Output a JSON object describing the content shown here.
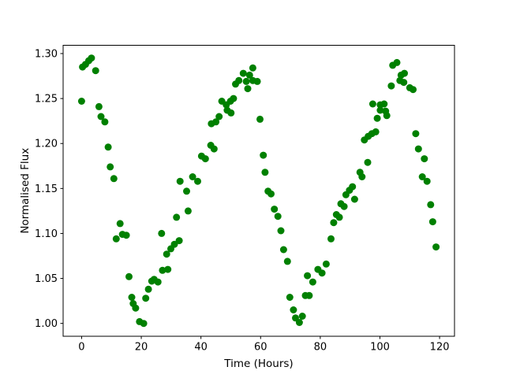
{
  "figure": {
    "background_color": "#ffffff"
  },
  "chart_data": {
    "type": "scatter",
    "title": "",
    "xlabel": "Time (Hours)",
    "ylabel": "Normalised Flux",
    "legend_position": "none",
    "grid": false,
    "marker": {
      "shape": "circle",
      "color": "#008000",
      "radius_px": 4.5
    },
    "axes": {
      "xlim": [
        -6.2,
        125.0
      ],
      "ylim": [
        0.9857,
        1.3092
      ],
      "xticks": [
        {
          "v": 0,
          "label": "0"
        },
        {
          "v": 20,
          "label": "20"
        },
        {
          "v": 40,
          "label": "40"
        },
        {
          "v": 60,
          "label": "60"
        },
        {
          "v": 80,
          "label": "80"
        },
        {
          "v": 100,
          "label": "100"
        },
        {
          "v": 120,
          "label": "120"
        }
      ],
      "yticks": [
        {
          "v": 1.0,
          "label": "1.00"
        },
        {
          "v": 1.05,
          "label": "1.05"
        },
        {
          "v": 1.1,
          "label": "1.10"
        },
        {
          "v": 1.15,
          "label": "1.15"
        },
        {
          "v": 1.2,
          "label": "1.20"
        },
        {
          "v": 1.25,
          "label": "1.25"
        },
        {
          "v": 1.3,
          "label": "1.30"
        }
      ]
    },
    "points": [
      [
        0.0,
        1.247
      ],
      [
        0.3,
        1.285
      ],
      [
        1.3,
        1.288
      ],
      [
        2.4,
        1.292
      ],
      [
        3.3,
        1.295
      ],
      [
        4.7,
        1.281
      ],
      [
        5.8,
        1.241
      ],
      [
        6.5,
        1.23
      ],
      [
        7.8,
        1.224
      ],
      [
        8.9,
        1.196
      ],
      [
        9.6,
        1.174
      ],
      [
        10.8,
        1.161
      ],
      [
        11.6,
        1.094
      ],
      [
        12.9,
        1.111
      ],
      [
        13.7,
        1.099
      ],
      [
        15.0,
        1.098
      ],
      [
        15.9,
        1.052
      ],
      [
        16.8,
        1.029
      ],
      [
        17.3,
        1.022
      ],
      [
        18.1,
        1.017
      ],
      [
        19.4,
        1.002
      ],
      [
        20.8,
        1.0
      ],
      [
        21.5,
        1.028
      ],
      [
        22.4,
        1.038
      ],
      [
        23.5,
        1.047
      ],
      [
        24.3,
        1.049
      ],
      [
        25.6,
        1.046
      ],
      [
        26.8,
        1.1
      ],
      [
        27.1,
        1.059
      ],
      [
        28.5,
        1.077
      ],
      [
        28.9,
        1.06
      ],
      [
        29.9,
        1.083
      ],
      [
        31.1,
        1.088
      ],
      [
        31.8,
        1.118
      ],
      [
        32.7,
        1.092
      ],
      [
        33.0,
        1.158
      ],
      [
        35.2,
        1.147
      ],
      [
        35.7,
        1.125
      ],
      [
        37.2,
        1.163
      ],
      [
        38.9,
        1.158
      ],
      [
        40.2,
        1.186
      ],
      [
        41.5,
        1.183
      ],
      [
        43.3,
        1.198
      ],
      [
        43.5,
        1.222
      ],
      [
        44.4,
        1.194
      ],
      [
        45.0,
        1.224
      ],
      [
        46.1,
        1.23
      ],
      [
        47.0,
        1.247
      ],
      [
        48.5,
        1.243
      ],
      [
        48.8,
        1.237
      ],
      [
        49.9,
        1.247
      ],
      [
        50.1,
        1.234
      ],
      [
        50.9,
        1.25
      ],
      [
        51.6,
        1.266
      ],
      [
        52.7,
        1.27
      ],
      [
        54.2,
        1.278
      ],
      [
        55.2,
        1.269
      ],
      [
        55.7,
        1.261
      ],
      [
        56.3,
        1.276
      ],
      [
        57.4,
        1.284
      ],
      [
        57.4,
        1.27
      ],
      [
        58.9,
        1.269
      ],
      [
        59.8,
        1.227
      ],
      [
        60.9,
        1.187
      ],
      [
        61.5,
        1.168
      ],
      [
        62.5,
        1.147
      ],
      [
        63.5,
        1.144
      ],
      [
        64.6,
        1.127
      ],
      [
        65.8,
        1.119
      ],
      [
        66.8,
        1.103
      ],
      [
        67.7,
        1.082
      ],
      [
        69.0,
        1.069
      ],
      [
        69.8,
        1.029
      ],
      [
        71.0,
        1.015
      ],
      [
        71.7,
        1.006
      ],
      [
        73.0,
        1.001
      ],
      [
        74.0,
        1.008
      ],
      [
        75.0,
        1.031
      ],
      [
        75.7,
        1.053
      ],
      [
        76.3,
        1.031
      ],
      [
        77.5,
        1.046
      ],
      [
        79.2,
        1.06
      ],
      [
        80.6,
        1.056
      ],
      [
        82.0,
        1.066
      ],
      [
        83.6,
        1.094
      ],
      [
        84.5,
        1.112
      ],
      [
        85.4,
        1.121
      ],
      [
        86.4,
        1.118
      ],
      [
        86.9,
        1.133
      ],
      [
        88.0,
        1.13
      ],
      [
        88.6,
        1.143
      ],
      [
        89.8,
        1.148
      ],
      [
        90.8,
        1.152
      ],
      [
        91.5,
        1.138
      ],
      [
        93.3,
        1.168
      ],
      [
        94.0,
        1.163
      ],
      [
        94.8,
        1.204
      ],
      [
        95.9,
        1.179
      ],
      [
        96.1,
        1.208
      ],
      [
        97.3,
        1.211
      ],
      [
        97.6,
        1.244
      ],
      [
        98.6,
        1.213
      ],
      [
        99.1,
        1.228
      ],
      [
        100.1,
        1.243
      ],
      [
        100.1,
        1.237
      ],
      [
        101.4,
        1.244
      ],
      [
        101.9,
        1.236
      ],
      [
        102.3,
        1.231
      ],
      [
        103.8,
        1.264
      ],
      [
        104.3,
        1.287
      ],
      [
        105.7,
        1.29
      ],
      [
        106.7,
        1.27
      ],
      [
        107.1,
        1.276
      ],
      [
        108.0,
        1.268
      ],
      [
        108.2,
        1.278
      ],
      [
        110.0,
        1.262
      ],
      [
        111.1,
        1.26
      ],
      [
        112.0,
        1.211
      ],
      [
        112.9,
        1.194
      ],
      [
        114.2,
        1.163
      ],
      [
        114.9,
        1.183
      ],
      [
        115.8,
        1.158
      ],
      [
        117.0,
        1.132
      ],
      [
        117.7,
        1.113
      ],
      [
        118.8,
        1.085
      ]
    ]
  }
}
